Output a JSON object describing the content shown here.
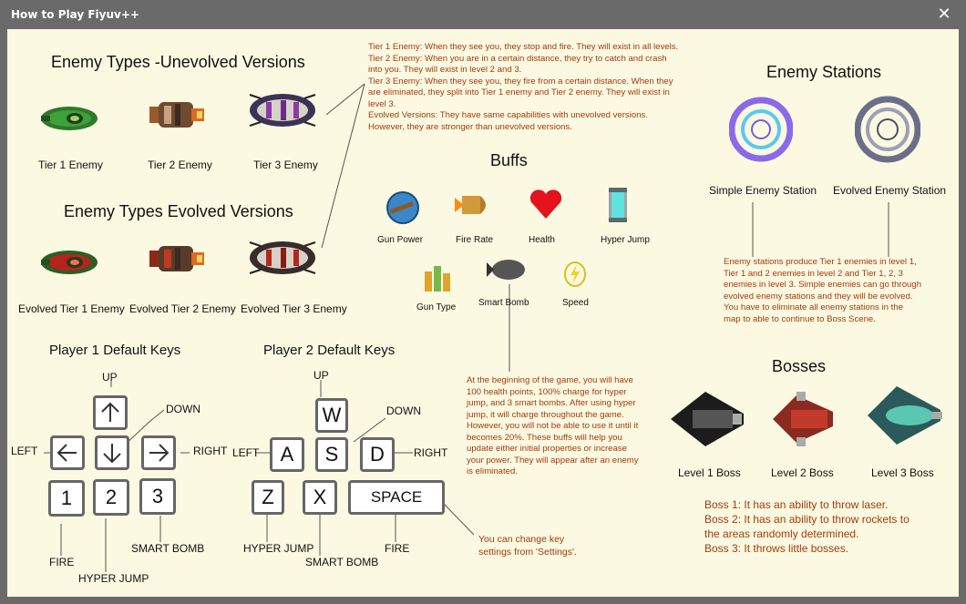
{
  "window": {
    "title": "How to Play Fiyuv++",
    "close_glyph": "✕"
  },
  "enemies": {
    "unevolved_title": "Enemy Types -Unevolved Versions",
    "evolved_title": "Enemy Types Evolved Versions",
    "tier1": "Tier 1 Enemy",
    "tier2": "Tier 2 Enemy",
    "tier3": "Tier 3 Enemy",
    "evolved_tier1": "Evolved Tier 1 Enemy",
    "evolved_tier2": "Evolved Tier 2 Enemy",
    "evolved_tier3": "Evolved Tier 3 Enemy",
    "description": [
      "Tier 1 Enemy: When they see you, they stop and fire. They will exist in all levels.",
      "Tier 2 Enemy: When you are in a certain distance, they try to catch and crash",
      "into you.  They will exist in level 2 and 3.",
      "Tier 3 Enemy: When they see you, they fire from a certain distance. When they",
      "are eliminated, they split into Tier 1 enemy and Tier 2 enemy. They will exist in",
      "level 3.",
      "Evolved Versions: They have same capabilities with unevolved versions.",
      "However, they are stronger than unevolved versions."
    ]
  },
  "buffs": {
    "title": "Buffs",
    "gun_power": "Gun Power",
    "fire_rate": "Fire Rate",
    "health": "Health",
    "hyper_jump": "Hyper Jump",
    "gun_type": "Gun Type",
    "smart_bomb": "Smart Bomb",
    "speed": "Speed",
    "description": [
      "At the beginning of the game, you will have",
      "100 health points, 100% charge for hyper",
      "jump, and 3 smart bombs. After using hyper",
      "jump, it will charge throughout the  game.",
      "However, you will not be able to use it until it",
      "becomes 20%. These buffs will help you",
      "update either initial properties or increase",
      "your power. They will appear after an enemy",
      "is eliminated."
    ]
  },
  "stations": {
    "title": "Enemy Stations",
    "simple": "Simple Enemy Station",
    "evolved": "Evolved Enemy Station",
    "description": [
      "Enemy stations produce Tier 1 enemies in level 1,",
      "Tier 1 and 2 enemies in level 2 and Tier 1, 2, 3",
      "enemies in level 3. Simple enemies can go through",
      "evolved enemy stations and they will be evolved.",
      "You have to eliminate all enemy stations in the",
      "map to able to continue to Boss Scene."
    ]
  },
  "bosses": {
    "title": "Bosses",
    "level1": "Level 1 Boss",
    "level2": "Level 2 Boss",
    "level3": "Level 3 Boss",
    "description": [
      "Boss 1: It has an ability to throw laser.",
      "Boss 2: It has an ability to throw rockets to",
      "the areas randomly determined.",
      "Boss 3: It throws little bosses."
    ]
  },
  "player1": {
    "title": "Player 1 Default Keys",
    "up": "UP",
    "down": "DOWN",
    "left": "LEFT",
    "right": "RIGHT",
    "key1": "1",
    "key2": "2",
    "key3": "3",
    "fire": "FIRE",
    "hyper_jump": "HYPER JUMP",
    "smart_bomb": "SMART BOMB"
  },
  "player2": {
    "title": "Player 2 Default Keys",
    "up": "UP",
    "down": "DOWN",
    "left": "LEFT",
    "right": "RIGHT",
    "key_w": "W",
    "key_a": "A",
    "key_s": "S",
    "key_d": "D",
    "key_z": "Z",
    "key_x": "X",
    "key_space": "SPACE",
    "fire": "FIRE",
    "hyper_jump": "HYPER JUMP",
    "smart_bomb": "SMART BOMB"
  },
  "settings_note": [
    "You can change key",
    "settings from 'Settings'."
  ],
  "colors": {
    "background": "#fbf9e1",
    "note_text": "#a63a0d",
    "key_border": "#666666",
    "window": "#6a6a6a"
  }
}
